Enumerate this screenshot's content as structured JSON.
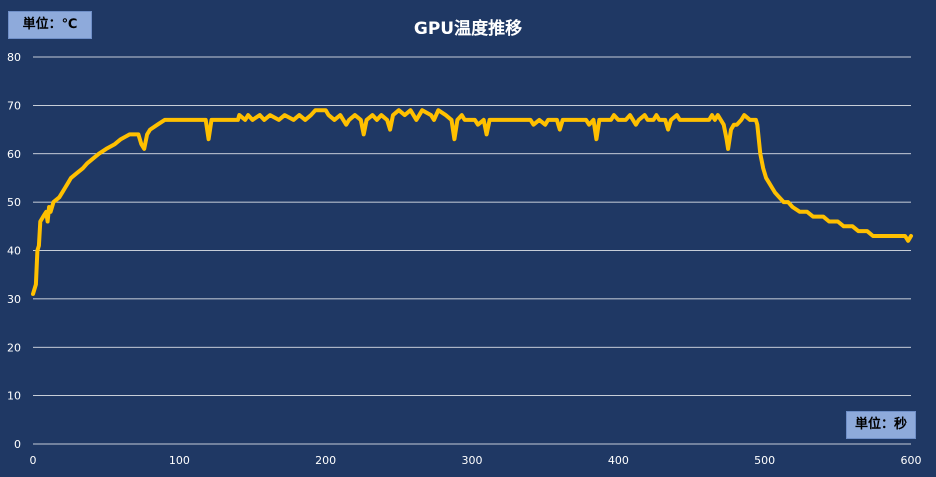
{
  "chart_data": {
    "type": "line",
    "title": "GPU温度推移",
    "y_unit_label": "単位：℃",
    "x_unit_label": "単位：秒",
    "xlim": [
      0,
      600
    ],
    "ylim": [
      0,
      80
    ],
    "x_ticks": [
      0,
      100,
      200,
      300,
      400,
      500,
      600
    ],
    "y_ticks": [
      0,
      10,
      20,
      30,
      40,
      50,
      60,
      70,
      80
    ],
    "grid": "horizontal",
    "colors": {
      "background": "#1f3864",
      "line": "#ffc000",
      "grid": "#ffffff"
    },
    "series": [
      {
        "points": [
          [
            0,
            31
          ],
          [
            2,
            33
          ],
          [
            3,
            40
          ],
          [
            4,
            41
          ],
          [
            5,
            46
          ],
          [
            7,
            47
          ],
          [
            9,
            48
          ],
          [
            10,
            46
          ],
          [
            11,
            49
          ],
          [
            12,
            48
          ],
          [
            14,
            50
          ],
          [
            18,
            51
          ],
          [
            20,
            52
          ],
          [
            22,
            53
          ],
          [
            24,
            54
          ],
          [
            26,
            55
          ],
          [
            30,
            56
          ],
          [
            34,
            57
          ],
          [
            37,
            58
          ],
          [
            41,
            59
          ],
          [
            45,
            60
          ],
          [
            50,
            61
          ],
          [
            56,
            62
          ],
          [
            60,
            63
          ],
          [
            66,
            64
          ],
          [
            72,
            64
          ],
          [
            74,
            62
          ],
          [
            76,
            61
          ],
          [
            78,
            64
          ],
          [
            80,
            65
          ],
          [
            85,
            66
          ],
          [
            90,
            67
          ],
          [
            118,
            67
          ],
          [
            120,
            63
          ],
          [
            122,
            67
          ],
          [
            140,
            67
          ],
          [
            141,
            68
          ],
          [
            145,
            67
          ],
          [
            147,
            68
          ],
          [
            150,
            67
          ],
          [
            155,
            68
          ],
          [
            158,
            67
          ],
          [
            162,
            68
          ],
          [
            168,
            67
          ],
          [
            172,
            68
          ],
          [
            178,
            67
          ],
          [
            182,
            68
          ],
          [
            186,
            67
          ],
          [
            190,
            68
          ],
          [
            193,
            69
          ],
          [
            200,
            69
          ],
          [
            202,
            68
          ],
          [
            206,
            67
          ],
          [
            210,
            68
          ],
          [
            214,
            66
          ],
          [
            216,
            67
          ],
          [
            220,
            68
          ],
          [
            224,
            67
          ],
          [
            226,
            64
          ],
          [
            228,
            67
          ],
          [
            232,
            68
          ],
          [
            235,
            67
          ],
          [
            238,
            68
          ],
          [
            242,
            67
          ],
          [
            244,
            65
          ],
          [
            246,
            68
          ],
          [
            250,
            69
          ],
          [
            254,
            68
          ],
          [
            258,
            69
          ],
          [
            262,
            67
          ],
          [
            266,
            69
          ],
          [
            272,
            68
          ],
          [
            274,
            67
          ],
          [
            277,
            69
          ],
          [
            282,
            68
          ],
          [
            286,
            67
          ],
          [
            288,
            63
          ],
          [
            290,
            67
          ],
          [
            293,
            68
          ],
          [
            295,
            67
          ],
          [
            302,
            67
          ],
          [
            304,
            66
          ],
          [
            308,
            67
          ],
          [
            310,
            64
          ],
          [
            312,
            67
          ],
          [
            340,
            67
          ],
          [
            342,
            66
          ],
          [
            346,
            67
          ],
          [
            350,
            66
          ],
          [
            352,
            67
          ],
          [
            358,
            67
          ],
          [
            360,
            65
          ],
          [
            362,
            67
          ],
          [
            378,
            67
          ],
          [
            380,
            66
          ],
          [
            383,
            67
          ],
          [
            385,
            63
          ],
          [
            387,
            67
          ],
          [
            395,
            67
          ],
          [
            397,
            68
          ],
          [
            400,
            67
          ],
          [
            405,
            67
          ],
          [
            408,
            68
          ],
          [
            410,
            67
          ],
          [
            412,
            66
          ],
          [
            414,
            67
          ],
          [
            418,
            68
          ],
          [
            420,
            67
          ],
          [
            424,
            67
          ],
          [
            426,
            68
          ],
          [
            428,
            67
          ],
          [
            432,
            67
          ],
          [
            434,
            65
          ],
          [
            436,
            67
          ],
          [
            440,
            68
          ],
          [
            442,
            67
          ],
          [
            462,
            67
          ],
          [
            464,
            68
          ],
          [
            466,
            67
          ],
          [
            468,
            68
          ],
          [
            470,
            67
          ],
          [
            472,
            66
          ],
          [
            474,
            63
          ],
          [
            475,
            61
          ],
          [
            477,
            65
          ],
          [
            479,
            66
          ],
          [
            481,
            66
          ],
          [
            484,
            67
          ],
          [
            486,
            68
          ],
          [
            490,
            67
          ],
          [
            494,
            67
          ],
          [
            495,
            66
          ],
          [
            497,
            60
          ],
          [
            499,
            57
          ],
          [
            501,
            55
          ],
          [
            503,
            54
          ],
          [
            505,
            53
          ],
          [
            507,
            52
          ],
          [
            510,
            51
          ],
          [
            513,
            50
          ],
          [
            516,
            50
          ],
          [
            519,
            49
          ],
          [
            524,
            48
          ],
          [
            529,
            48
          ],
          [
            533,
            47
          ],
          [
            540,
            47
          ],
          [
            544,
            46
          ],
          [
            550,
            46
          ],
          [
            554,
            45
          ],
          [
            560,
            45
          ],
          [
            564,
            44
          ],
          [
            570,
            44
          ],
          [
            574,
            43
          ],
          [
            596,
            43
          ],
          [
            598,
            42
          ],
          [
            600,
            43
          ]
        ]
      }
    ]
  }
}
